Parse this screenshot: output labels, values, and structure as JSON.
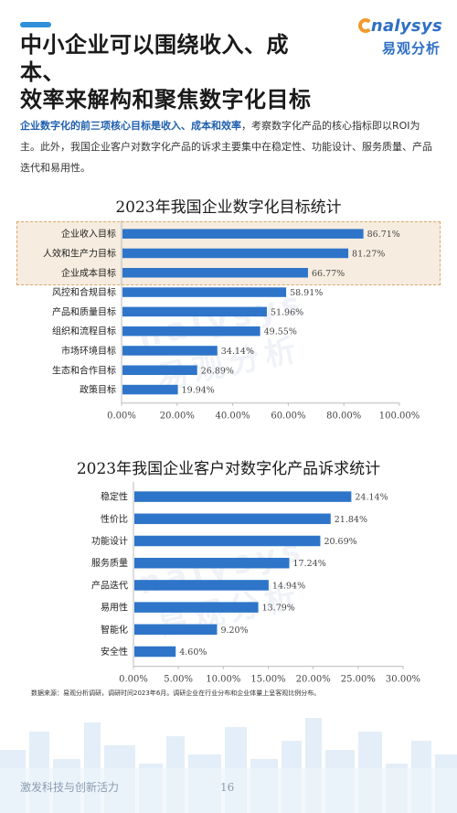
{
  "header": {
    "title_line1": "中小企业可以围绕收入、成本、",
    "title_line2": "效率来解构和聚焦数字化目标",
    "logo_en": "nalysys",
    "logo_cn": "易观分析"
  },
  "intro": {
    "highlight": "企业数字化的前三项核心目标是收入、成本和效率",
    "rest": "，考察数字化产品的核心指标即以ROI为主。此外，我国企业客户对数字化产品的诉求主要集中在稳定性、功能设计、服务质量、产品迭代和易用性。"
  },
  "chart_data": [
    {
      "type": "bar",
      "orientation": "horizontal",
      "title": "2023年我国企业数字化目标统计",
      "categories": [
        "企业收入目标",
        "人效和生产力目标",
        "企业成本目标",
        "风控和合规目标",
        "产品和质量目标",
        "组织和流程目标",
        "市场环境目标",
        "生态和合作目标",
        "政策目标"
      ],
      "values": [
        86.71,
        81.27,
        66.77,
        58.91,
        51.96,
        49.55,
        34.14,
        26.89,
        19.94
      ],
      "value_labels": [
        "86.71%",
        "81.27%",
        "66.77%",
        "58.91%",
        "51.96%",
        "49.55%",
        "34.14%",
        "26.89%",
        "19.94%"
      ],
      "xlim": [
        0,
        100
      ],
      "xticks": [
        0,
        20,
        40,
        60,
        80,
        100
      ],
      "xtick_labels": [
        "0.00%",
        "20.00%",
        "40.00%",
        "60.00%",
        "80.00%",
        "100.00%"
      ],
      "highlighted_categories": [
        "企业收入目标",
        "人效和生产力目标",
        "企业成本目标"
      ],
      "highlight_color": "#f6ecdf",
      "bar_color": "#2e75c9",
      "grid": false
    },
    {
      "type": "bar",
      "orientation": "horizontal",
      "title": "2023年我国企业客户对数字化产品诉求统计",
      "categories": [
        "稳定性",
        "性价比",
        "功能设计",
        "服务质量",
        "产品迭代",
        "易用性",
        "智能化",
        "安全性"
      ],
      "values": [
        24.14,
        21.84,
        20.69,
        17.24,
        14.94,
        13.79,
        9.2,
        4.6
      ],
      "value_labels": [
        "24.14%",
        "21.84%",
        "20.69%",
        "17.24%",
        "14.94%",
        "13.79%",
        "9.20%",
        "4.60%"
      ],
      "xlim": [
        0,
        30
      ],
      "xticks": [
        0,
        5,
        10,
        15,
        20,
        25,
        30
      ],
      "xtick_labels": [
        "0.00%",
        "5.00%",
        "10.00%",
        "15.00%",
        "20.00%",
        "25.00%",
        "30.00%"
      ],
      "bar_color": "#2e75c9",
      "grid": false
    }
  ],
  "source_note": "数据来源：易观分析调研，调研时间2023年6月。调研企业在行业分布和企业体量上呈客观比例分布。",
  "watermark": [
    "nalysys",
    "易观分析"
  ],
  "footer": {
    "slogan": "激发科技与创新活力",
    "page_number": "16"
  },
  "colors": {
    "accent": "#2f8fd8",
    "brand": "#2f6fc4",
    "bar": "#2e75c9",
    "highlight": "#f6ecdf"
  }
}
